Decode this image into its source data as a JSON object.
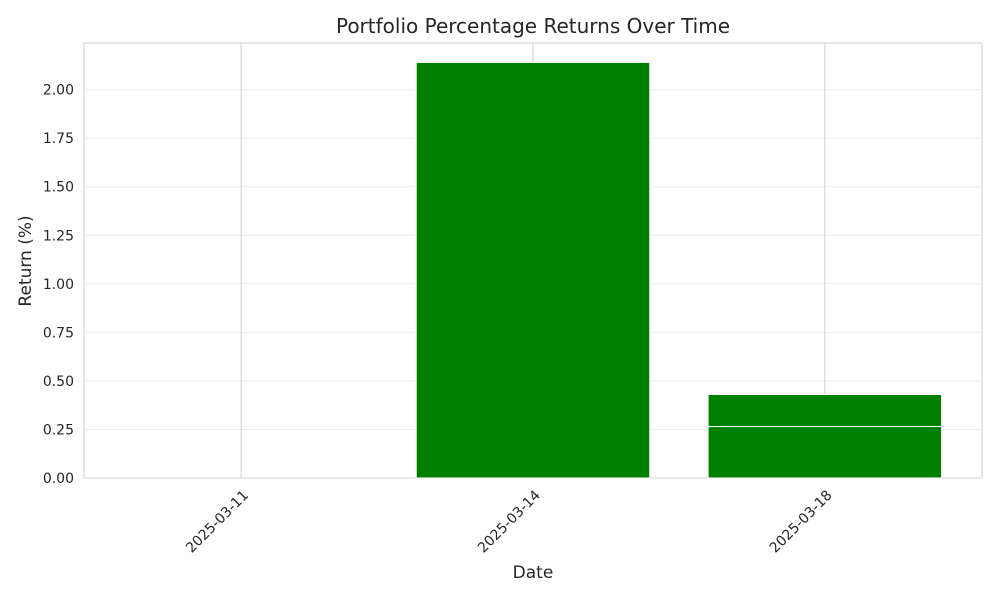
{
  "chart_data": {
    "type": "bar",
    "title": "Portfolio Percentage Returns Over Time",
    "xlabel": "Date",
    "ylabel": "Return (%)",
    "categories": [
      "2025-03-11",
      "2025-03-14",
      "2025-03-18"
    ],
    "series": [
      {
        "values": [
          0.0,
          2.14,
          0.43
        ],
        "color": "#008000"
      }
    ],
    "segment_splits": [
      null,
      null,
      0.265
    ],
    "ylim": [
      0,
      2.24
    ],
    "yticks": [
      "0.00",
      "0.25",
      "0.50",
      "0.75",
      "1.00",
      "1.25",
      "1.50",
      "1.75",
      "2.00"
    ],
    "grid": true,
    "legend": "none"
  }
}
